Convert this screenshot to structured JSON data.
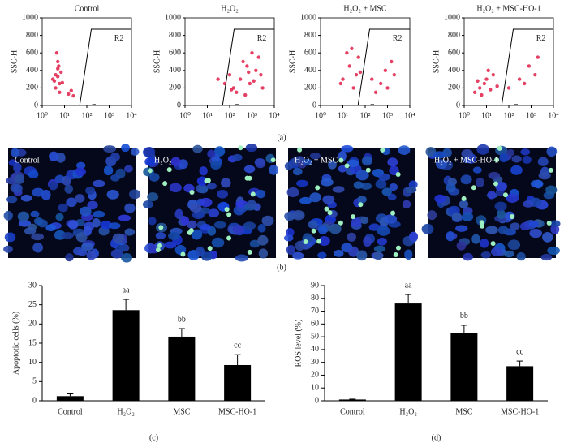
{
  "chart_data": [
    {
      "type": "scatter",
      "title": "Control",
      "y_label": "SSC-H",
      "gate_label": "R2",
      "color": "#e0204a",
      "log_x": true,
      "xlim": [
        1,
        10000
      ],
      "xticks": [
        {
          "value": 1,
          "label": "10⁰"
        },
        {
          "value": 10,
          "label": "10¹"
        },
        {
          "value": 100,
          "label": "10²"
        },
        {
          "value": 1000,
          "label": "10³"
        },
        {
          "value": 10000,
          "label": "10⁴"
        }
      ],
      "ylim": [
        0,
        1000
      ],
      "yticks": [
        0,
        200,
        400,
        600,
        800,
        1000
      ],
      "x": [
        3,
        4,
        5,
        6,
        4,
        5,
        7,
        3.5,
        6,
        5,
        4.5,
        8,
        15,
        20,
        25,
        5.5
      ],
      "y": [
        300,
        350,
        420,
        250,
        200,
        500,
        380,
        280,
        150,
        330,
        600,
        260,
        130,
        170,
        110,
        450
      ]
    },
    {
      "type": "scatter",
      "title": "H₂O₂",
      "y_label": "SSC-H",
      "gate_label": "R2",
      "color": "#e0204a",
      "log_x": true,
      "xlim": [
        1,
        10000
      ],
      "xticks": [
        {
          "value": 1,
          "label": "10⁰"
        },
        {
          "value": 10,
          "label": "10¹"
        },
        {
          "value": 100,
          "label": "10²"
        },
        {
          "value": 1000,
          "label": "10³"
        },
        {
          "value": 10000,
          "label": "10⁴"
        }
      ],
      "ylim": [
        0,
        1000
      ],
      "yticks": [
        0,
        200,
        400,
        600,
        800,
        1000
      ],
      "x": [
        150,
        300,
        800,
        1500,
        2500,
        400,
        200,
        100,
        60,
        1000,
        2000,
        3000,
        600,
        30,
        120,
        500,
        1200,
        700
      ],
      "y": [
        200,
        300,
        250,
        400,
        350,
        500,
        150,
        350,
        250,
        600,
        550,
        200,
        450,
        300,
        180,
        120,
        280,
        380
      ]
    },
    {
      "type": "scatter",
      "title": "H₂O₂ + MSC",
      "y_label": "SSC-H",
      "gate_label": "R2",
      "color": "#e0204a",
      "log_x": true,
      "xlim": [
        1,
        10000
      ],
      "xticks": [
        {
          "value": 1,
          "label": "10⁰"
        },
        {
          "value": 10,
          "label": "10¹"
        },
        {
          "value": 100,
          "label": "10²"
        },
        {
          "value": 1000,
          "label": "10³"
        },
        {
          "value": 10000,
          "label": "10⁴"
        }
      ],
      "ylim": [
        0,
        1000
      ],
      "yticks": [
        0,
        200,
        400,
        600,
        800,
        1000
      ],
      "x": [
        10,
        20,
        40,
        15,
        8,
        30,
        60,
        200,
        500,
        1000,
        2000,
        800,
        1500,
        300,
        50,
        25
      ],
      "y": [
        300,
        450,
        350,
        600,
        250,
        200,
        380,
        300,
        250,
        200,
        350,
        400,
        500,
        150,
        550,
        650
      ]
    },
    {
      "type": "scatter",
      "title": "H₂O₂ + MSC-HO-1",
      "y_label": "SSC-H",
      "gate_label": "R2",
      "color": "#e0204a",
      "log_x": true,
      "caption": "(a)",
      "xlim": [
        1,
        10000
      ],
      "xticks": [
        {
          "value": 1,
          "label": "10⁰"
        },
        {
          "value": 10,
          "label": "10¹"
        },
        {
          "value": 100,
          "label": "10²"
        },
        {
          "value": 1000,
          "label": "10³"
        },
        {
          "value": 10000,
          "label": "10⁴"
        }
      ],
      "ylim": [
        0,
        1000
      ],
      "yticks": [
        0,
        200,
        400,
        600,
        800,
        1000
      ],
      "x": [
        3,
        5,
        8,
        10,
        15,
        20,
        6,
        4,
        30,
        12,
        100,
        300,
        800,
        1500,
        2000,
        500
      ],
      "y": [
        150,
        200,
        250,
        300,
        180,
        350,
        120,
        280,
        220,
        400,
        200,
        300,
        450,
        350,
        550,
        250
      ]
    },
    {
      "type": "bar",
      "y_label": "Apoptotic cells (%)",
      "caption": "(c)",
      "color": "#000000",
      "categories": [
        "Control",
        "H₂O₂",
        "MSC",
        "MSC-HO-1"
      ],
      "values": [
        1.2,
        23.6,
        16.7,
        9.3
      ],
      "errors": [
        0.6,
        2.8,
        2.1,
        2.7
      ],
      "annotations": [
        null,
        "aa",
        "bb",
        "cc"
      ],
      "ylim": [
        0,
        30
      ],
      "yticks": [
        0,
        5,
        10,
        15,
        20,
        25,
        30
      ]
    },
    {
      "type": "bar",
      "y_label": "ROS level (%)",
      "caption": "(d)",
      "color": "#000000",
      "categories": [
        "Control",
        "H₂O₂",
        "MSC",
        "MSC-HO-1"
      ],
      "values": [
        1,
        76,
        53,
        27
      ],
      "errors": [
        0.3,
        7,
        6,
        4
      ],
      "annotations": [
        null,
        "aa",
        "bb",
        "cc"
      ],
      "ylim": [
        0,
        90
      ],
      "yticks": [
        0,
        10,
        20,
        30,
        40,
        50,
        60,
        70,
        80,
        90
      ]
    }
  ],
  "micrographs": {
    "labels": [
      "Control",
      "H₂O₂",
      "H₂O₂ + MSC",
      "H₂O₂ + MSC-HO-1"
    ],
    "caption": "(b)"
  }
}
